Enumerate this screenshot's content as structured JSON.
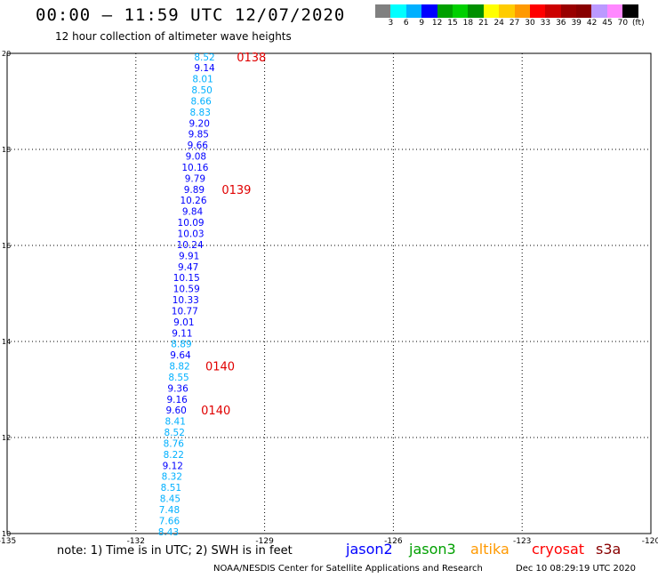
{
  "header": {
    "title": "00:00 — 11:59 UTC 12/07/2020",
    "subtitle": "12 hour collection of altimeter wave heights"
  },
  "legend": {
    "colors": [
      "#808080",
      "#00ffff",
      "#00b0ff",
      "#0000ff",
      "#00a000",
      "#00d000",
      "#009000",
      "#ffff00",
      "#ffcc00",
      "#ff9900",
      "#ff0000",
      "#cc0000",
      "#990000",
      "#880000",
      "#bb99ff",
      "#ff88ff",
      "#000000"
    ],
    "labels": [
      "3",
      "6",
      "9",
      "12",
      "15",
      "18",
      "21",
      "24",
      "27",
      "30",
      "33",
      "36",
      "39",
      "42",
      "45",
      "70",
      "(ft)"
    ]
  },
  "chart_data": {
    "type": "scatter",
    "xlim": [
      -135,
      -120
    ],
    "ylim": [
      10,
      20
    ],
    "xticks": [
      "-135",
      "-132",
      "-129",
      "-126",
      "-123",
      "-120"
    ],
    "yticks": [
      "20",
      "18",
      "16",
      "14",
      "12",
      "10"
    ],
    "grid": true,
    "points": [
      {
        "x": -130.4,
        "y": 19.93,
        "v": "8.52",
        "c": "#00b0ff"
      },
      {
        "x": -130.4,
        "y": 19.7,
        "v": "9.14",
        "c": "#0000ff"
      },
      {
        "x": -130.44,
        "y": 19.47,
        "v": "8.01",
        "c": "#00b0ff"
      },
      {
        "x": -130.46,
        "y": 19.24,
        "v": "8.50",
        "c": "#00b0ff"
      },
      {
        "x": -130.48,
        "y": 19.01,
        "v": "8.66",
        "c": "#00b0ff"
      },
      {
        "x": -130.5,
        "y": 18.78,
        "v": "8.83",
        "c": "#00b0ff"
      },
      {
        "x": -130.52,
        "y": 18.55,
        "v": "9.20",
        "c": "#0000ff"
      },
      {
        "x": -130.54,
        "y": 18.32,
        "v": "9.85",
        "c": "#0000ff"
      },
      {
        "x": -130.56,
        "y": 18.09,
        "v": "9.66",
        "c": "#0000ff"
      },
      {
        "x": -130.6,
        "y": 17.86,
        "v": "9.08",
        "c": "#0000ff"
      },
      {
        "x": -130.62,
        "y": 17.63,
        "v": "10.16",
        "c": "#0000ff"
      },
      {
        "x": -130.62,
        "y": 17.4,
        "v": "9.79",
        "c": "#0000ff"
      },
      {
        "x": -130.64,
        "y": 17.17,
        "v": "9.89",
        "c": "#0000ff"
      },
      {
        "x": -130.66,
        "y": 16.94,
        "v": "10.26",
        "c": "#0000ff"
      },
      {
        "x": -130.68,
        "y": 16.71,
        "v": "9.84",
        "c": "#0000ff"
      },
      {
        "x": -130.72,
        "y": 16.48,
        "v": "10.09",
        "c": "#0000ff"
      },
      {
        "x": -130.72,
        "y": 16.25,
        "v": "10.03",
        "c": "#0000ff"
      },
      {
        "x": -130.74,
        "y": 16.02,
        "v": "10.24",
        "c": "#0000ff"
      },
      {
        "x": -130.76,
        "y": 15.79,
        "v": "9.91",
        "c": "#0000ff"
      },
      {
        "x": -130.78,
        "y": 15.56,
        "v": "9.47",
        "c": "#0000ff"
      },
      {
        "x": -130.82,
        "y": 15.33,
        "v": "10.15",
        "c": "#0000ff"
      },
      {
        "x": -130.82,
        "y": 15.1,
        "v": "10.59",
        "c": "#0000ff"
      },
      {
        "x": -130.84,
        "y": 14.87,
        "v": "10.33",
        "c": "#0000ff"
      },
      {
        "x": -130.86,
        "y": 14.64,
        "v": "10.77",
        "c": "#0000ff"
      },
      {
        "x": -130.88,
        "y": 14.41,
        "v": "9.01",
        "c": "#0000ff"
      },
      {
        "x": -130.92,
        "y": 14.18,
        "v": "9.11",
        "c": "#0000ff"
      },
      {
        "x": -130.94,
        "y": 13.95,
        "v": "8.89",
        "c": "#00b0ff"
      },
      {
        "x": -130.96,
        "y": 13.72,
        "v": "9.64",
        "c": "#0000ff"
      },
      {
        "x": -130.98,
        "y": 13.49,
        "v": "8.82",
        "c": "#00b0ff"
      },
      {
        "x": -131.0,
        "y": 13.26,
        "v": "8.55",
        "c": "#00b0ff"
      },
      {
        "x": -131.02,
        "y": 13.03,
        "v": "9.36",
        "c": "#0000ff"
      },
      {
        "x": -131.04,
        "y": 12.8,
        "v": "9.16",
        "c": "#0000ff"
      },
      {
        "x": -131.06,
        "y": 12.57,
        "v": "9.60",
        "c": "#0000ff"
      },
      {
        "x": -131.08,
        "y": 12.34,
        "v": "8.41",
        "c": "#00b0ff"
      },
      {
        "x": -131.1,
        "y": 12.11,
        "v": "8.52",
        "c": "#00b0ff"
      },
      {
        "x": -131.12,
        "y": 11.88,
        "v": "8.76",
        "c": "#00b0ff"
      },
      {
        "x": -131.12,
        "y": 11.65,
        "v": "8.22",
        "c": "#00b0ff"
      },
      {
        "x": -131.14,
        "y": 11.42,
        "v": "9.12",
        "c": "#0000ff"
      },
      {
        "x": -131.16,
        "y": 11.19,
        "v": "8.32",
        "c": "#00b0ff"
      },
      {
        "x": -131.18,
        "y": 10.96,
        "v": "8.51",
        "c": "#00b0ff"
      },
      {
        "x": -131.2,
        "y": 10.73,
        "v": "8.45",
        "c": "#00b0ff"
      },
      {
        "x": -131.22,
        "y": 10.5,
        "v": "7.48",
        "c": "#00b0ff"
      },
      {
        "x": -131.22,
        "y": 10.27,
        "v": "7.66",
        "c": "#00b0ff"
      },
      {
        "x": -131.24,
        "y": 10.04,
        "v": "8.43",
        "c": "#00b0ff"
      }
    ],
    "annotations": [
      {
        "x": -129.65,
        "y": 19.93,
        "text": "0138"
      },
      {
        "x": -130.0,
        "y": 17.17,
        "text": "0139"
      },
      {
        "x": -130.38,
        "y": 13.49,
        "text": "0140"
      },
      {
        "x": -130.48,
        "y": 12.57,
        "text": "0140"
      }
    ]
  },
  "footer": {
    "note": "note: 1) Time is in UTC; 2) SWH is in feet",
    "satellites": [
      {
        "name": "jason2",
        "color": "#0000ff"
      },
      {
        "name": "jason3",
        "color": "#00a000"
      },
      {
        "name": "altika",
        "color": "#ff9900"
      },
      {
        "name": "cryosat",
        "color": "#ff0000"
      },
      {
        "name": "s3a",
        "color": "#880000"
      }
    ],
    "credit": "NOAA/NESDIS Center for Satellite Applications and Research",
    "timestamp": "Dec 10 08:29:19 UTC 2020"
  }
}
